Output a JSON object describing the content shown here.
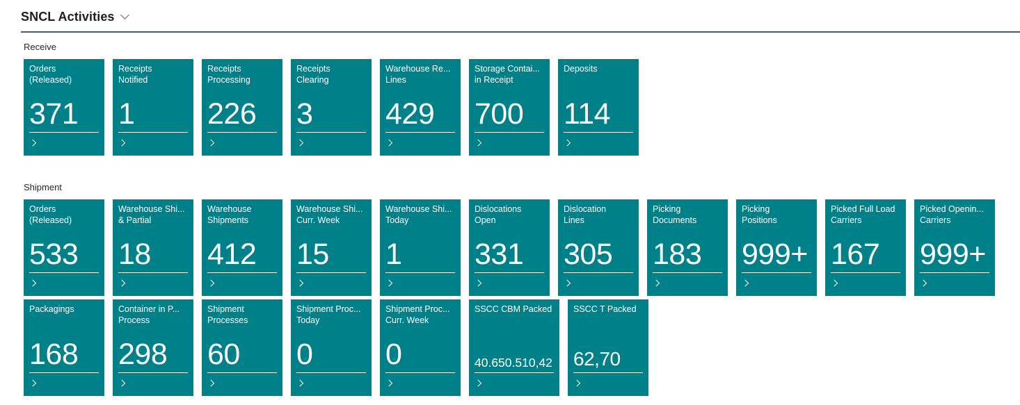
{
  "header": {
    "title": "SNCL Activities"
  },
  "icons": {
    "header_dropdown": "chevron-down",
    "tile_link": "chevron-right"
  },
  "colors": {
    "tile_background": "#008089",
    "tile_text": "#ffffff",
    "header_rule": "#4d5868",
    "title_text": "#1e1e1e",
    "section_label_text": "#24292d",
    "chevron_gray": "#596976",
    "page_background": "#ffffff"
  },
  "sections": [
    {
      "label": "Receive",
      "rows": [
        [
          {
            "label_lines": [
              "Orders",
              "(Released)"
            ],
            "value": "371",
            "size": "large"
          },
          {
            "label_lines": [
              "Receipts",
              "Notified"
            ],
            "value": "1",
            "size": "large"
          },
          {
            "label_lines": [
              "Receipts",
              "Processing"
            ],
            "value": "226",
            "size": "large"
          },
          {
            "label_lines": [
              "Receipts",
              "Clearing"
            ],
            "value": "3",
            "size": "large"
          },
          {
            "label_lines": [
              "Warehouse Re...",
              "Lines"
            ],
            "value": "429",
            "size": "large"
          },
          {
            "label_lines": [
              "Storage Contai...",
              "in Receipt"
            ],
            "value": "700",
            "size": "large"
          },
          {
            "label_lines": [
              "Deposits"
            ],
            "value": "114",
            "size": "large"
          }
        ]
      ]
    },
    {
      "label": "Shipment",
      "rows": [
        [
          {
            "label_lines": [
              "Orders",
              "(Released)"
            ],
            "value": "533",
            "size": "large"
          },
          {
            "label_lines": [
              "Warehouse Shi...",
              "& Partial"
            ],
            "value": "18",
            "size": "large"
          },
          {
            "label_lines": [
              "Warehouse",
              "Shipments"
            ],
            "value": "412",
            "size": "large"
          },
          {
            "label_lines": [
              "Warehouse Shi...",
              "Curr. Week"
            ],
            "value": "15",
            "size": "large"
          },
          {
            "label_lines": [
              "Warehouse Shi...",
              "Today"
            ],
            "value": "1",
            "size": "large"
          },
          {
            "label_lines": [
              "Dislocations",
              "Open"
            ],
            "value": "331",
            "size": "large"
          },
          {
            "label_lines": [
              "Dislocation",
              "Lines"
            ],
            "value": "305",
            "size": "large"
          },
          {
            "label_lines": [
              "Picking",
              "Documents"
            ],
            "value": "183",
            "size": "large"
          },
          {
            "label_lines": [
              "Picking",
              "Positions"
            ],
            "value": "999+",
            "size": "large"
          },
          {
            "label_lines": [
              "Picked Full Load",
              "Carriers"
            ],
            "value": "167",
            "size": "large"
          },
          {
            "label_lines": [
              "Picked Openin...",
              "Carriers"
            ],
            "value": "999+",
            "size": "large"
          }
        ],
        [
          {
            "label_lines": [
              "Packagings"
            ],
            "value": "168",
            "size": "large"
          },
          {
            "label_lines": [
              "Container in P...",
              "Process"
            ],
            "value": "298",
            "size": "large"
          },
          {
            "label_lines": [
              "Shipment",
              "Processes"
            ],
            "value": "60",
            "size": "large"
          },
          {
            "label_lines": [
              "Shipment Proc...",
              "Today"
            ],
            "value": "0",
            "size": "large"
          },
          {
            "label_lines": [
              "Shipment Proc...",
              "Curr. Week"
            ],
            "value": "0",
            "size": "large"
          },
          {
            "label_lines": [
              "SSCC CBM Packed"
            ],
            "value": "40.650.510,42",
            "size": "small",
            "wide": true
          },
          {
            "label_lines": [
              "SSCC T Packed"
            ],
            "value": "62,70",
            "size": "medium"
          }
        ]
      ]
    }
  ]
}
